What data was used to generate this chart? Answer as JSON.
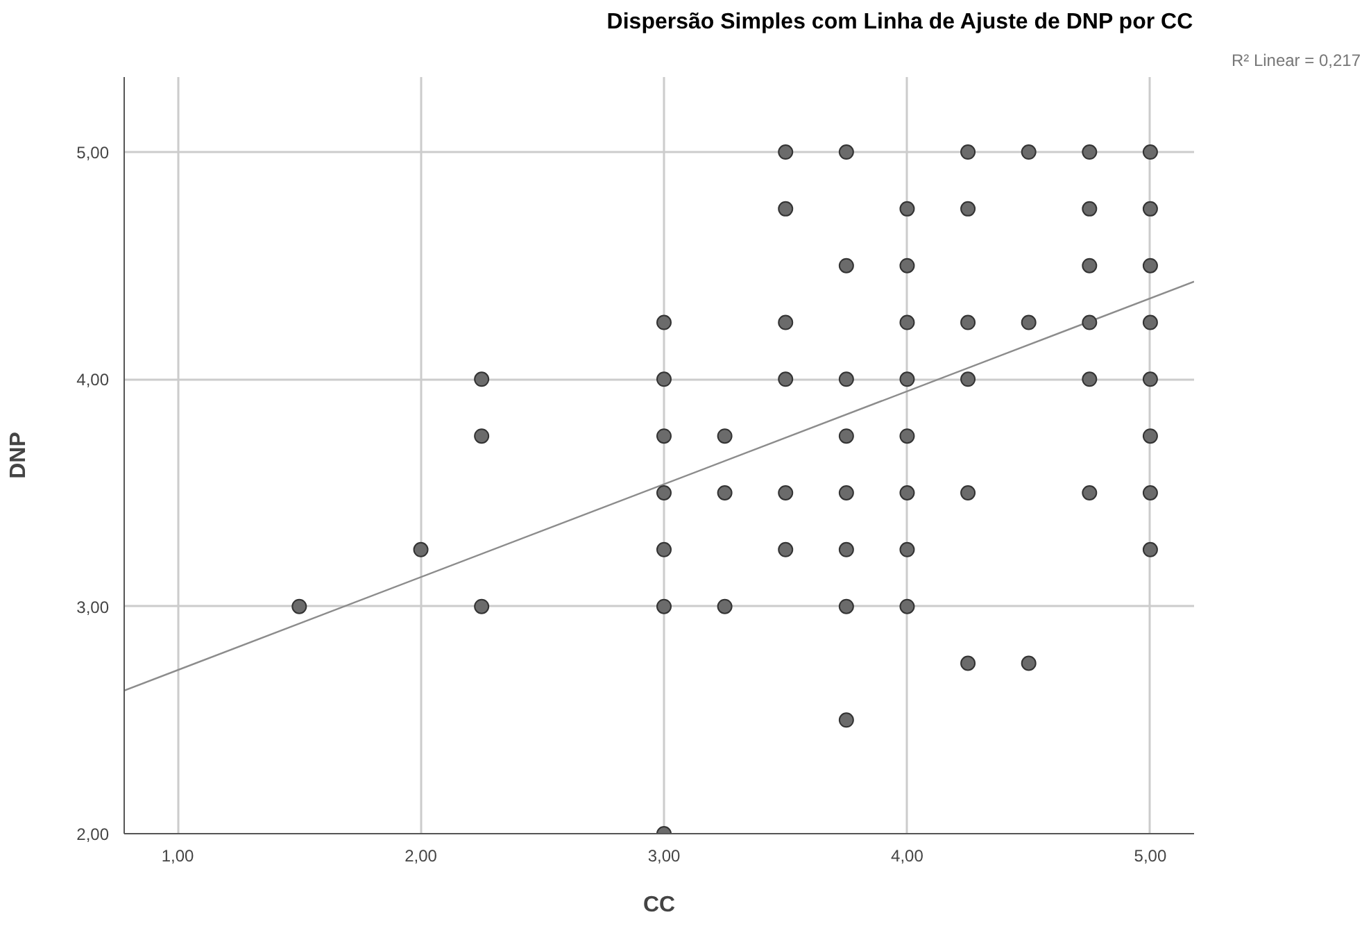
{
  "chart_data": {
    "type": "scatter",
    "title": "Dispersão Simples com Linha de Ajuste de DNP por CC",
    "xlabel": "CC",
    "ylabel": "DNP",
    "annotations": [
      "R² Linear = 0,217"
    ],
    "xlim": [
      0.78,
      5.18
    ],
    "ylim": [
      2.0,
      5.33
    ],
    "xticks": [
      {
        "value": 1,
        "label": "1,00"
      },
      {
        "value": 2,
        "label": "2,00"
      },
      {
        "value": 3,
        "label": "3,00"
      },
      {
        "value": 4,
        "label": "4,00"
      },
      {
        "value": 5,
        "label": "5,00"
      }
    ],
    "yticks": [
      {
        "value": 2,
        "label": "2,00"
      },
      {
        "value": 3,
        "label": "3,00"
      },
      {
        "value": 4,
        "label": "4,00"
      },
      {
        "value": 5,
        "label": "5,00"
      }
    ],
    "grid": true,
    "series": [
      {
        "marker": "circle",
        "color": "#6b6b6b",
        "x": [
          1.5,
          2.0,
          2.25,
          2.25,
          2.25,
          3.0,
          3.0,
          3.0,
          3.0,
          3.0,
          3.0,
          3.0,
          3.25,
          3.25,
          3.25,
          3.5,
          3.5,
          3.5,
          3.5,
          3.5,
          3.5,
          3.75,
          3.75,
          3.75,
          3.75,
          3.75,
          3.75,
          3.75,
          3.75,
          4.0,
          4.0,
          4.0,
          4.0,
          4.0,
          4.0,
          4.0,
          4.0,
          4.25,
          4.25,
          4.25,
          4.25,
          4.25,
          4.25,
          4.5,
          4.5,
          4.5,
          4.75,
          4.75,
          4.75,
          4.75,
          4.75,
          4.75,
          5.0,
          5.0,
          5.0,
          5.0,
          5.0,
          5.0,
          5.0,
          5.0
        ],
        "values": [
          3.0,
          3.25,
          4.0,
          3.75,
          3.0,
          4.25,
          4.0,
          3.75,
          3.5,
          3.25,
          3.0,
          2.0,
          3.75,
          3.5,
          3.0,
          5.0,
          4.75,
          4.25,
          4.0,
          3.5,
          3.25,
          5.0,
          4.5,
          4.0,
          3.75,
          3.5,
          3.25,
          3.0,
          2.5,
          4.75,
          4.5,
          4.25,
          4.0,
          3.75,
          3.5,
          3.25,
          3.0,
          5.0,
          4.75,
          4.25,
          4.0,
          3.5,
          2.75,
          5.0,
          4.25,
          2.75,
          5.0,
          4.75,
          4.5,
          4.25,
          4.0,
          3.5,
          5.0,
          4.75,
          4.5,
          4.25,
          4.0,
          3.75,
          3.5,
          3.25
        ]
      },
      {
        "type": "line",
        "color": "#8c8c8c",
        "x": [
          0.78,
          5.18
        ],
        "values": [
          2.63,
          4.43
        ]
      }
    ]
  }
}
